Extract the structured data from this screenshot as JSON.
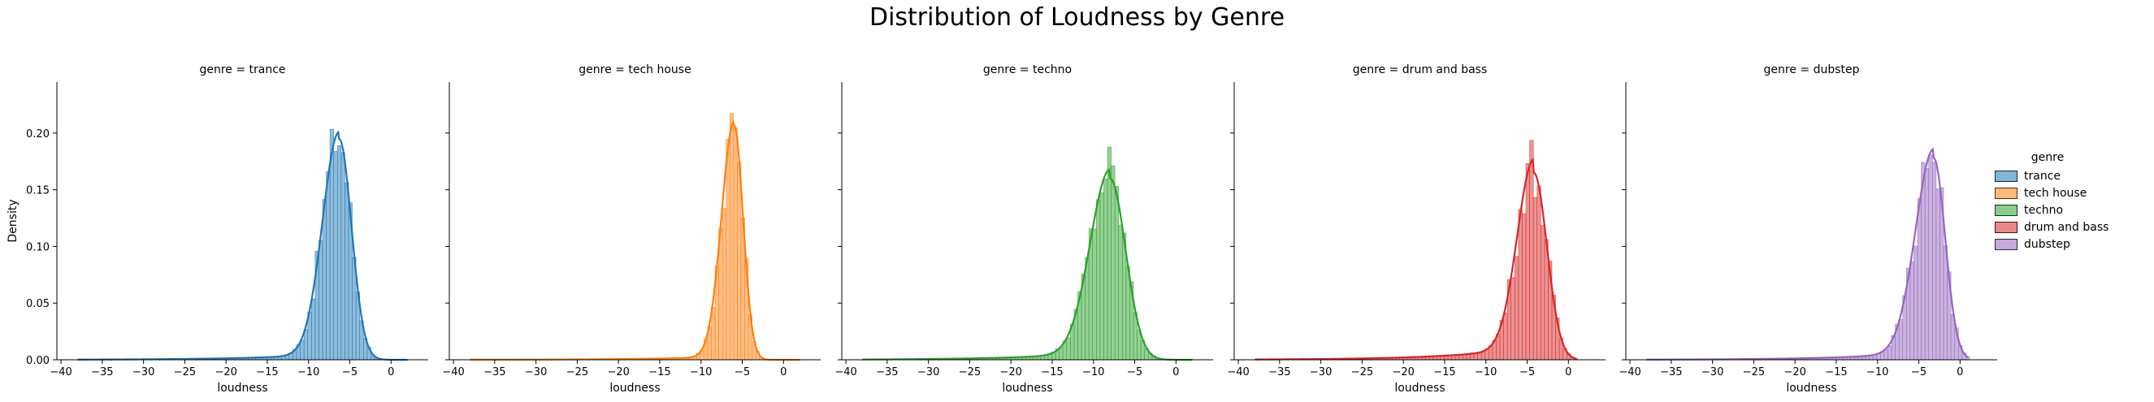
{
  "figure": {
    "title": "Distribution of Loudness by Genre"
  },
  "legend": {
    "title": "genre",
    "items": [
      {
        "label": "trance",
        "color": "#1f77b4"
      },
      {
        "label": "tech house",
        "color": "#ff7f0e"
      },
      {
        "label": "techno",
        "color": "#2ca02c"
      },
      {
        "label": "drum and bass",
        "color": "#d62728"
      },
      {
        "label": "dubstep",
        "color": "#9467bd"
      }
    ]
  },
  "chart_data": {
    "type": "histogram",
    "kde": true,
    "xlabel": "loudness",
    "ylabel": "Density",
    "xlim": [
      -40.5,
      4.5
    ],
    "ylim": [
      0,
      0.245
    ],
    "xticks": [
      -40,
      -35,
      -30,
      -25,
      -20,
      -15,
      -10,
      -5,
      0
    ],
    "xtick_labels": [
      "−40",
      "−35",
      "−30",
      "−25",
      "−20",
      "−15",
      "−10",
      "−5",
      "0"
    ],
    "yticks": [
      0.0,
      0.05,
      0.1,
      0.15,
      0.2
    ],
    "ytick_labels": [
      "0.00",
      "0.05",
      "0.10",
      "0.15",
      "0.20"
    ],
    "grid": false,
    "legend_position": "right",
    "panels": [
      {
        "title": "genre = trance",
        "genre": "trance",
        "color": "#1f77b4",
        "kde": {
          "peak_x": -6.3,
          "peak_y": 0.195,
          "sd_left": 2.0,
          "sd_right": 1.5,
          "tail_weight": 0.006
        },
        "x_range": [
          -38,
          2
        ]
      },
      {
        "title": "genre = tech house",
        "genre": "tech house",
        "color": "#ff7f0e",
        "kde": {
          "peak_x": -6.0,
          "peak_y": 0.207,
          "sd_left": 1.5,
          "sd_right": 1.1,
          "tail_weight": 0.003
        },
        "x_range": [
          -38,
          2
        ]
      },
      {
        "title": "genre = techno",
        "genre": "techno",
        "color": "#2ca02c",
        "kde": {
          "peak_x": -8.0,
          "peak_y": 0.16,
          "sd_left": 2.4,
          "sd_right": 1.9,
          "tail_weight": 0.008
        },
        "x_range": [
          -38,
          2
        ]
      },
      {
        "title": "genre = drum and bass",
        "genre": "drum and bass",
        "color": "#d62728",
        "kde": {
          "peak_x": -4.2,
          "peak_y": 0.165,
          "sd_left": 2.0,
          "sd_right": 1.6,
          "tail_weight": 0.012
        },
        "x_range": [
          -38,
          1
        ]
      },
      {
        "title": "genre = dubstep",
        "genre": "dubstep",
        "color": "#9467bd",
        "kde": {
          "peak_x": -3.2,
          "peak_y": 0.178,
          "sd_left": 2.2,
          "sd_right": 1.4,
          "tail_weight": 0.008
        },
        "x_range": [
          -38,
          1
        ]
      }
    ]
  }
}
